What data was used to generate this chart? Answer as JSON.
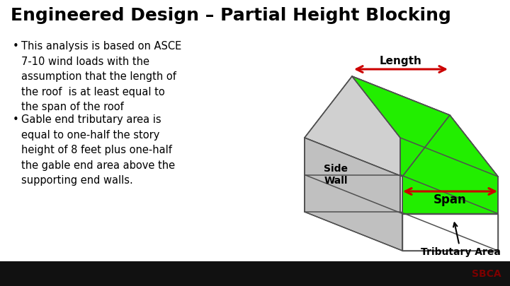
{
  "title": "Engineered Design – Partial Height Blocking",
  "title_fontsize": 18,
  "title_fontweight": "bold",
  "bullet1": "This analysis is based on ASCE\n7-10 wind loads with the\nassumption that the length of\nthe roof  is at least equal to\nthe span of the roof",
  "bullet2": "Gable end tributary area is\nequal to one-half the story\nheight of 8 feet plus one-half\nthe gable end area above the\nsupporting end walls.",
  "label_length": "Length",
  "label_span": "Span",
  "label_sidewall": "Side\nWall",
  "label_tributary": "Tributary Area",
  "bg_color": "#ffffff",
  "footer_color": "#111111",
  "sbca_color": "#7a0000",
  "gray_light": "#d8d8d8",
  "gray_medium": "#c0c0c0",
  "gray_side": "#b8b8b8",
  "white": "#ffffff",
  "green": "#22ee00",
  "outline": "#505050",
  "arrow_color": "#cc0000",
  "text_color": "#000000",
  "bullet_fs": 10.5,
  "label_fs": 10,
  "label_fw": "bold"
}
